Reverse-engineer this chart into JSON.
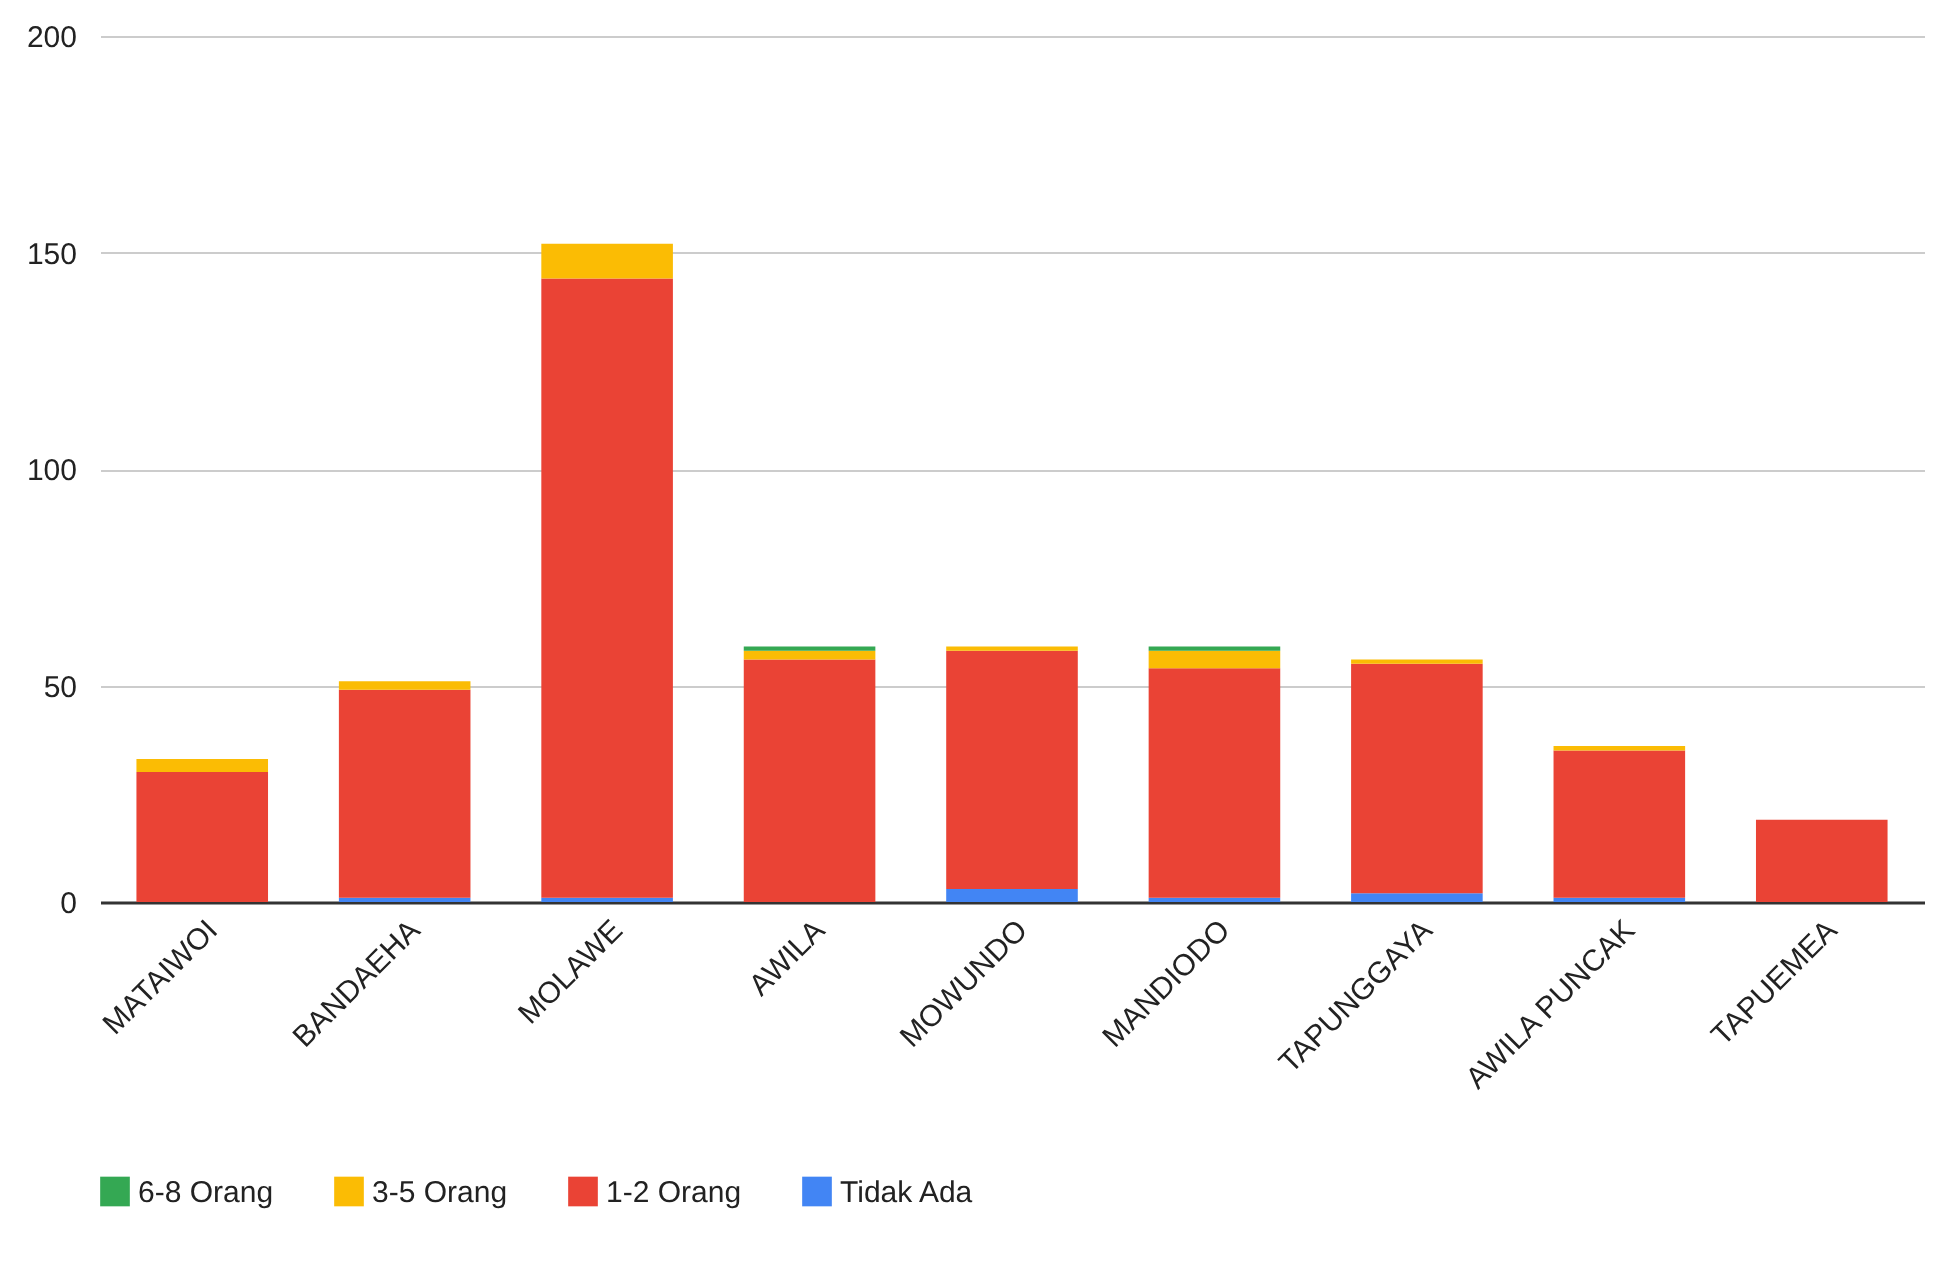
{
  "chart_data": {
    "type": "bar",
    "stacked": true,
    "categories": [
      "MATAIWOI",
      "BANDAEHA",
      "MOLAWE",
      "AWILA",
      "MOWUNDO",
      "MANDIODO",
      "TAPUNGGAYA",
      "AWILA PUNCAK",
      "TAPUEMEA"
    ],
    "series": [
      {
        "name": "Tidak Ada",
        "color": "#4285f4",
        "values": [
          0,
          1,
          1,
          0,
          3,
          1,
          2,
          1,
          0
        ]
      },
      {
        "name": "1-2 Orang",
        "color": "#ea4335",
        "values": [
          30,
          48,
          143,
          56,
          55,
          53,
          53,
          34,
          19
        ]
      },
      {
        "name": "3-5 Orang",
        "color": "#fbbc04",
        "values": [
          3,
          2,
          8,
          2,
          1,
          4,
          1,
          1,
          0
        ]
      },
      {
        "name": "6-8 Orang",
        "color": "#34a853",
        "values": [
          0,
          0,
          0,
          1,
          0,
          1,
          0,
          0,
          0
        ]
      }
    ],
    "ylim": [
      0,
      200
    ],
    "yticks": [
      0,
      50,
      100,
      150,
      200
    ],
    "grid": "y",
    "legend": "bottom"
  }
}
